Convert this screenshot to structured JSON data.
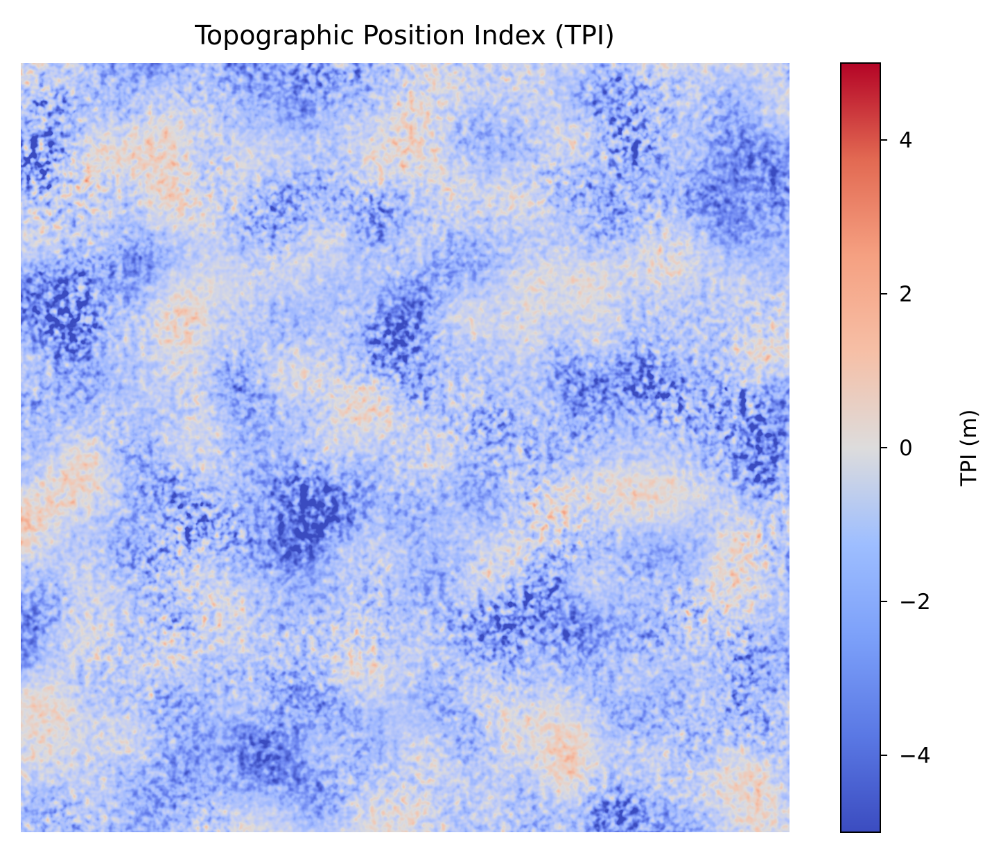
{
  "chart_data": {
    "type": "heatmap",
    "title": "Topographic Position Index (TPI)",
    "colormap": "coolwarm",
    "colorbar": {
      "label": "TPI (m)",
      "vmin": -5,
      "vmax": 5,
      "ticks": [
        -4,
        -2,
        0,
        2,
        4
      ],
      "tick_labels": [
        "−4",
        "−2",
        "0",
        "2",
        "4"
      ]
    },
    "axes_visible": false,
    "colors": {
      "low": "#3b4cc0",
      "mid": "#dddddd",
      "high": "#b40426"
    }
  }
}
